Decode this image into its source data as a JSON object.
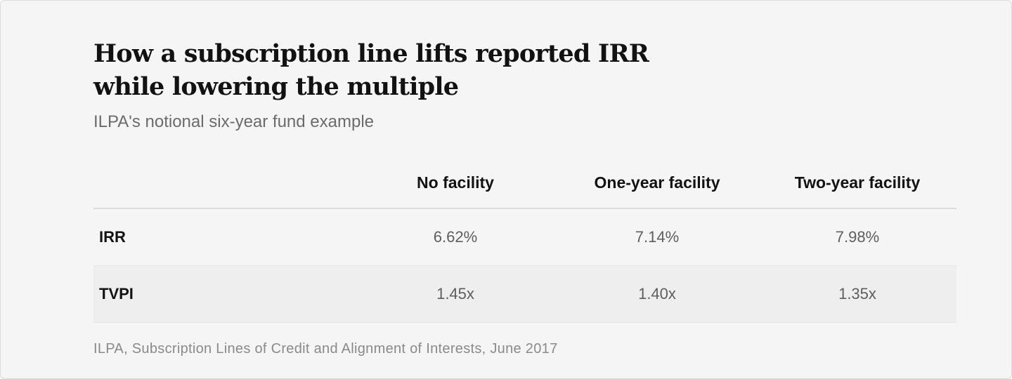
{
  "chart_data": {
    "type": "table",
    "title": "How a subscription line lifts reported IRR while lowering the multiple",
    "subtitle": "ILPA's notional six-year fund example",
    "columns": [
      "",
      "No facility",
      "One-year facility",
      "Two-year facility"
    ],
    "rows": [
      {
        "label": "IRR",
        "values": [
          "6.62%",
          "7.14%",
          "7.98%"
        ]
      },
      {
        "label": "TVPI",
        "values": [
          "1.45x",
          "1.40x",
          "1.35x"
        ]
      }
    ],
    "source": "ILPA, Subscription Lines of Credit and Alignment of Interests, June 2017"
  }
}
